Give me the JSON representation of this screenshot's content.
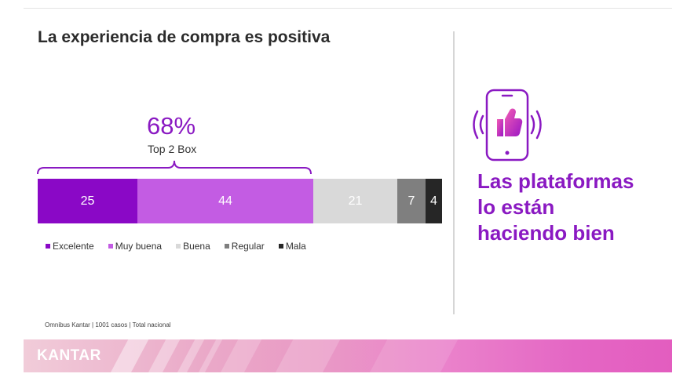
{
  "slide": {
    "title": "La experiencia de compra es positiva",
    "source": "Omnibus Kantar | 1001 casos | Total nacional",
    "brand": "KANTAR"
  },
  "top_box": {
    "percent": "68%",
    "label": "Top 2 Box"
  },
  "headline": {
    "lines": [
      "Las plataformas",
      "lo están",
      "haciendo bien"
    ]
  },
  "icon": {
    "name": "phone-thumbs-up-icon"
  },
  "colors": {
    "accent": "#8a19c2",
    "excelente": "#8a08c6",
    "muy_buena": "#c35ce3",
    "buena": "#d9d9d9",
    "regular": "#7f7f7f",
    "mala": "#262626"
  },
  "chart_data": {
    "type": "bar",
    "orientation": "horizontal-stacked",
    "title": "La experiencia de compra es positiva",
    "categories": [
      "Excelente",
      "Muy buena",
      "Buena",
      "Regular",
      "Mala"
    ],
    "values": [
      25,
      44,
      21,
      7,
      4
    ],
    "colors": [
      "#8a08c6",
      "#c35ce3",
      "#d9d9d9",
      "#7f7f7f",
      "#262626"
    ],
    "annotation": {
      "text": "68%",
      "subtext": "Top 2 Box",
      "spans": [
        "Excelente",
        "Muy buena"
      ]
    },
    "legend": {
      "position": "bottom-left"
    },
    "xlabel": "",
    "ylabel": ""
  }
}
